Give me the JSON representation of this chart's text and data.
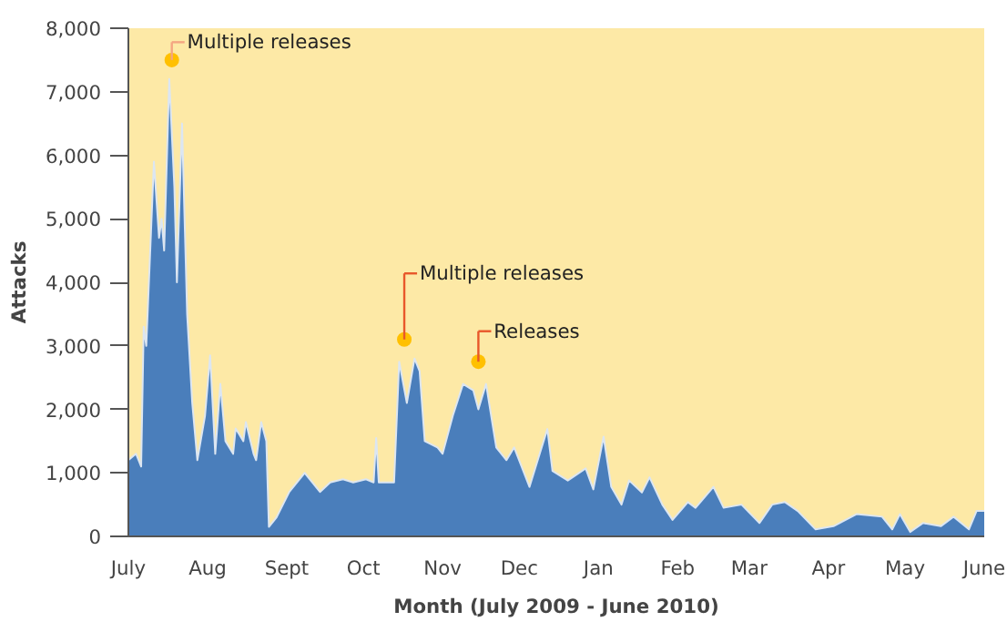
{
  "chart_data": {
    "type": "area",
    "xlabel": "Month (July 2009 - June 2010)",
    "ylabel": "Attacks",
    "x": [
      "2009-07-01",
      "2009-07-04",
      "2009-07-06",
      "2009-07-07",
      "2009-07-08",
      "2009-07-11",
      "2009-07-13",
      "2009-07-14",
      "2009-07-15",
      "2009-07-17",
      "2009-07-19",
      "2009-07-20",
      "2009-07-22",
      "2009-07-24",
      "2009-07-26",
      "2009-07-28",
      "2009-07-31",
      "2009-08-02",
      "2009-08-04",
      "2009-08-06",
      "2009-08-08",
      "2009-08-11",
      "2009-08-12",
      "2009-08-15",
      "2009-08-16",
      "2009-08-19",
      "2009-08-20",
      "2009-08-22",
      "2009-08-24",
      "2009-08-25",
      "2009-08-28",
      "2009-09-02",
      "2009-09-08",
      "2009-09-14",
      "2009-09-18",
      "2009-09-23",
      "2009-09-27",
      "2009-10-02",
      "2009-10-05",
      "2009-10-06",
      "2009-10-07",
      "2009-10-13",
      "2009-10-15",
      "2009-10-18",
      "2009-10-21",
      "2009-10-23",
      "2009-10-25",
      "2009-10-30",
      "2009-11-01",
      "2009-11-05",
      "2009-11-09",
      "2009-11-13",
      "2009-11-15",
      "2009-11-18",
      "2009-11-22",
      "2009-11-26",
      "2009-11-29",
      "2009-12-05",
      "2009-12-12",
      "2009-12-14",
      "2009-12-20",
      "2009-12-27",
      "2009-12-30",
      "2010-01-03",
      "2010-01-06",
      "2010-01-10",
      "2010-01-13",
      "2010-01-18",
      "2010-01-21",
      "2010-01-26",
      "2010-01-30",
      "2010-02-05",
      "2010-02-08",
      "2010-02-15",
      "2010-02-19",
      "2010-02-26",
      "2010-03-05",
      "2010-03-10",
      "2010-03-15",
      "2010-03-20",
      "2010-03-27",
      "2010-04-03",
      "2010-04-12",
      "2010-04-22",
      "2010-04-26",
      "2010-04-29",
      "2010-05-03",
      "2010-05-08",
      "2010-05-15",
      "2010-05-20",
      "2010-05-26",
      "2010-05-29",
      "2010-06-01"
    ],
    "series": [
      {
        "color": "#4a7ebb",
        "values": [
          1200,
          1300,
          1100,
          3300,
          3000,
          5900,
          4700,
          5000,
          4500,
          7200,
          5500,
          4000,
          6500,
          3500,
          2100,
          1200,
          1900,
          2850,
          1300,
          2400,
          1500,
          1300,
          1700,
          1500,
          1800,
          1300,
          1200,
          1800,
          1500,
          150,
          300,
          700,
          1000,
          700,
          850,
          900,
          850,
          900,
          850,
          1550,
          850,
          850,
          2750,
          2100,
          2800,
          2600,
          1500,
          1400,
          1300,
          1900,
          2400,
          2300,
          2000,
          2400,
          1400,
          1200,
          1400,
          780,
          1690,
          1030,
          880,
          1070,
          740,
          1570,
          780,
          500,
          880,
          690,
          930,
          500,
          260,
          540,
          450,
          780,
          450,
          500,
          210,
          500,
          540,
          400,
          110,
          160,
          350,
          310,
          110,
          350,
          70,
          210,
          160,
          310,
          110,
          400,
          400
        ]
      }
    ],
    "xlim": [
      "2009-07-01",
      "2010-06-01"
    ],
    "xticks": [
      {
        "value": "2009-07-01",
        "label": "July"
      },
      {
        "value": "2009-08-01",
        "label": "Aug"
      },
      {
        "value": "2009-09-01",
        "label": "Sept"
      },
      {
        "value": "2009-10-01",
        "label": "Oct"
      },
      {
        "value": "2009-11-01",
        "label": "Nov"
      },
      {
        "value": "2009-12-01",
        "label": "Dec"
      },
      {
        "value": "2010-01-01",
        "label": "Jan"
      },
      {
        "value": "2010-02-01",
        "label": "Feb"
      },
      {
        "value": "2010-03-01",
        "label": "Mar"
      },
      {
        "value": "2010-04-01",
        "label": "Apr"
      },
      {
        "value": "2010-05-01",
        "label": "May"
      },
      {
        "value": "2010-06-01",
        "label": "June"
      }
    ],
    "ylim": [
      0,
      8000
    ],
    "yticks": [
      {
        "value": 0,
        "label": "0"
      },
      {
        "value": 1000,
        "label": "1,000"
      },
      {
        "value": 2000,
        "label": "2,000"
      },
      {
        "value": 3000,
        "label": "3,000"
      },
      {
        "value": 4000,
        "label": "4,000"
      },
      {
        "value": 5000,
        "label": "5,000"
      },
      {
        "value": 6000,
        "label": "6,000"
      },
      {
        "value": 7000,
        "label": "7,000"
      },
      {
        "value": 8000,
        "label": "8,000"
      }
    ],
    "annotations": [
      {
        "text": "Multiple releases",
        "x": "2009-07-18",
        "y": 7500
      },
      {
        "text": "Multiple releases",
        "x": "2009-10-17",
        "y": 3100
      },
      {
        "text": "Releases",
        "x": "2009-11-15",
        "y": 2750
      }
    ],
    "grid": false
  }
}
